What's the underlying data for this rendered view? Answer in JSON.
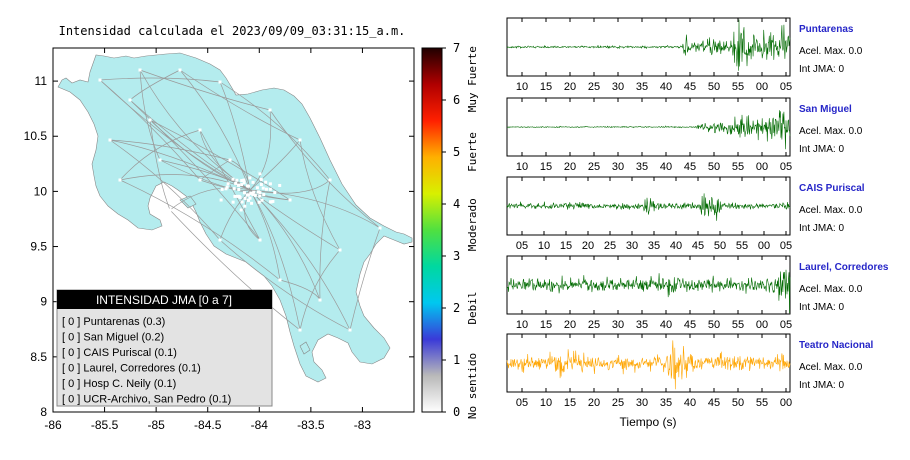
{
  "map": {
    "title": "Intensidad calculada el 2023/09/09_03:31:15_a.m.",
    "x_ticks": [
      "-86",
      "-85.5",
      "-85",
      "-84.5",
      "-84",
      "-83.5",
      "-83"
    ],
    "y_ticks": [
      "8",
      "8.5",
      "9",
      "9.5",
      "10",
      "10.5",
      "11"
    ],
    "xlim": [
      -86,
      -82.5
    ],
    "ylim": [
      8,
      11.3
    ],
    "land_color": "#b4ecee",
    "legend": {
      "title": "INTENSIDAD JMA [0 a 7]",
      "items": [
        "[ 0 ]  Puntarenas (0.3)",
        "[ 0 ]  San Miguel (0.2)",
        "[ 0 ]  CAIS Puriscal (0.1)",
        "[ 0 ]  Laurel, Corredores (0.1)",
        "[ 0 ]  Hosp C. Neily (0.1)",
        "[ 0 ]  UCR-Archivo, San Pedro (0.1)"
      ]
    }
  },
  "colorbar": {
    "ticks": [
      "0",
      "1",
      "2",
      "3",
      "4",
      "5",
      "6",
      "7"
    ],
    "range": [
      0,
      7
    ],
    "labels": [
      "No sentido",
      "Debil",
      "Moderado",
      "Fuerte",
      "Muy Fuerte"
    ],
    "colors": [
      "#ffffff",
      "#b9b9b9",
      "#3a3ad8",
      "#00c8f0",
      "#00d8a0",
      "#50e040",
      "#d8f000",
      "#ffb000",
      "#ff2000",
      "#b00000",
      "#200000"
    ]
  },
  "waveforms": {
    "xlabel": "Tiempo (s)",
    "stations": [
      {
        "name": "Puntarenas",
        "acel": "Acel. Max. 0.0",
        "int": "Int JMA: 0",
        "color": "#006a00",
        "ticks": [
          "10",
          "15",
          "20",
          "25",
          "30",
          "35",
          "40",
          "45",
          "50",
          "55",
          "00",
          "05"
        ]
      },
      {
        "name": "San Miguel",
        "acel": "Acel. Max. 0.0",
        "int": "Int JMA: 0",
        "color": "#006a00",
        "ticks": [
          "10",
          "15",
          "20",
          "25",
          "30",
          "35",
          "40",
          "45",
          "50",
          "55",
          "00",
          "05"
        ]
      },
      {
        "name": "CAIS Puriscal",
        "acel": "Acel. Max. 0.0",
        "int": "Int JMA: 0",
        "color": "#006a00",
        "ticks": [
          "05",
          "10",
          "15",
          "20",
          "25",
          "30",
          "35",
          "40",
          "45",
          "50",
          "55",
          "00",
          "05"
        ]
      },
      {
        "name": "Laurel, Corredores",
        "acel": "Acel. Max. 0.0",
        "int": "Int JMA: 0",
        "color": "#006a00",
        "ticks": [
          "10",
          "15",
          "20",
          "25",
          "30",
          "35",
          "40",
          "45",
          "50",
          "55",
          "00",
          "05"
        ]
      },
      {
        "name": "Teatro Nacional",
        "acel": "Acel. Max. 0.0",
        "int": "Int JMA: 0",
        "color": "#ffa500",
        "ticks": [
          "05",
          "10",
          "15",
          "20",
          "25",
          "30",
          "35",
          "40",
          "45",
          "50",
          "55",
          "00"
        ]
      }
    ]
  }
}
